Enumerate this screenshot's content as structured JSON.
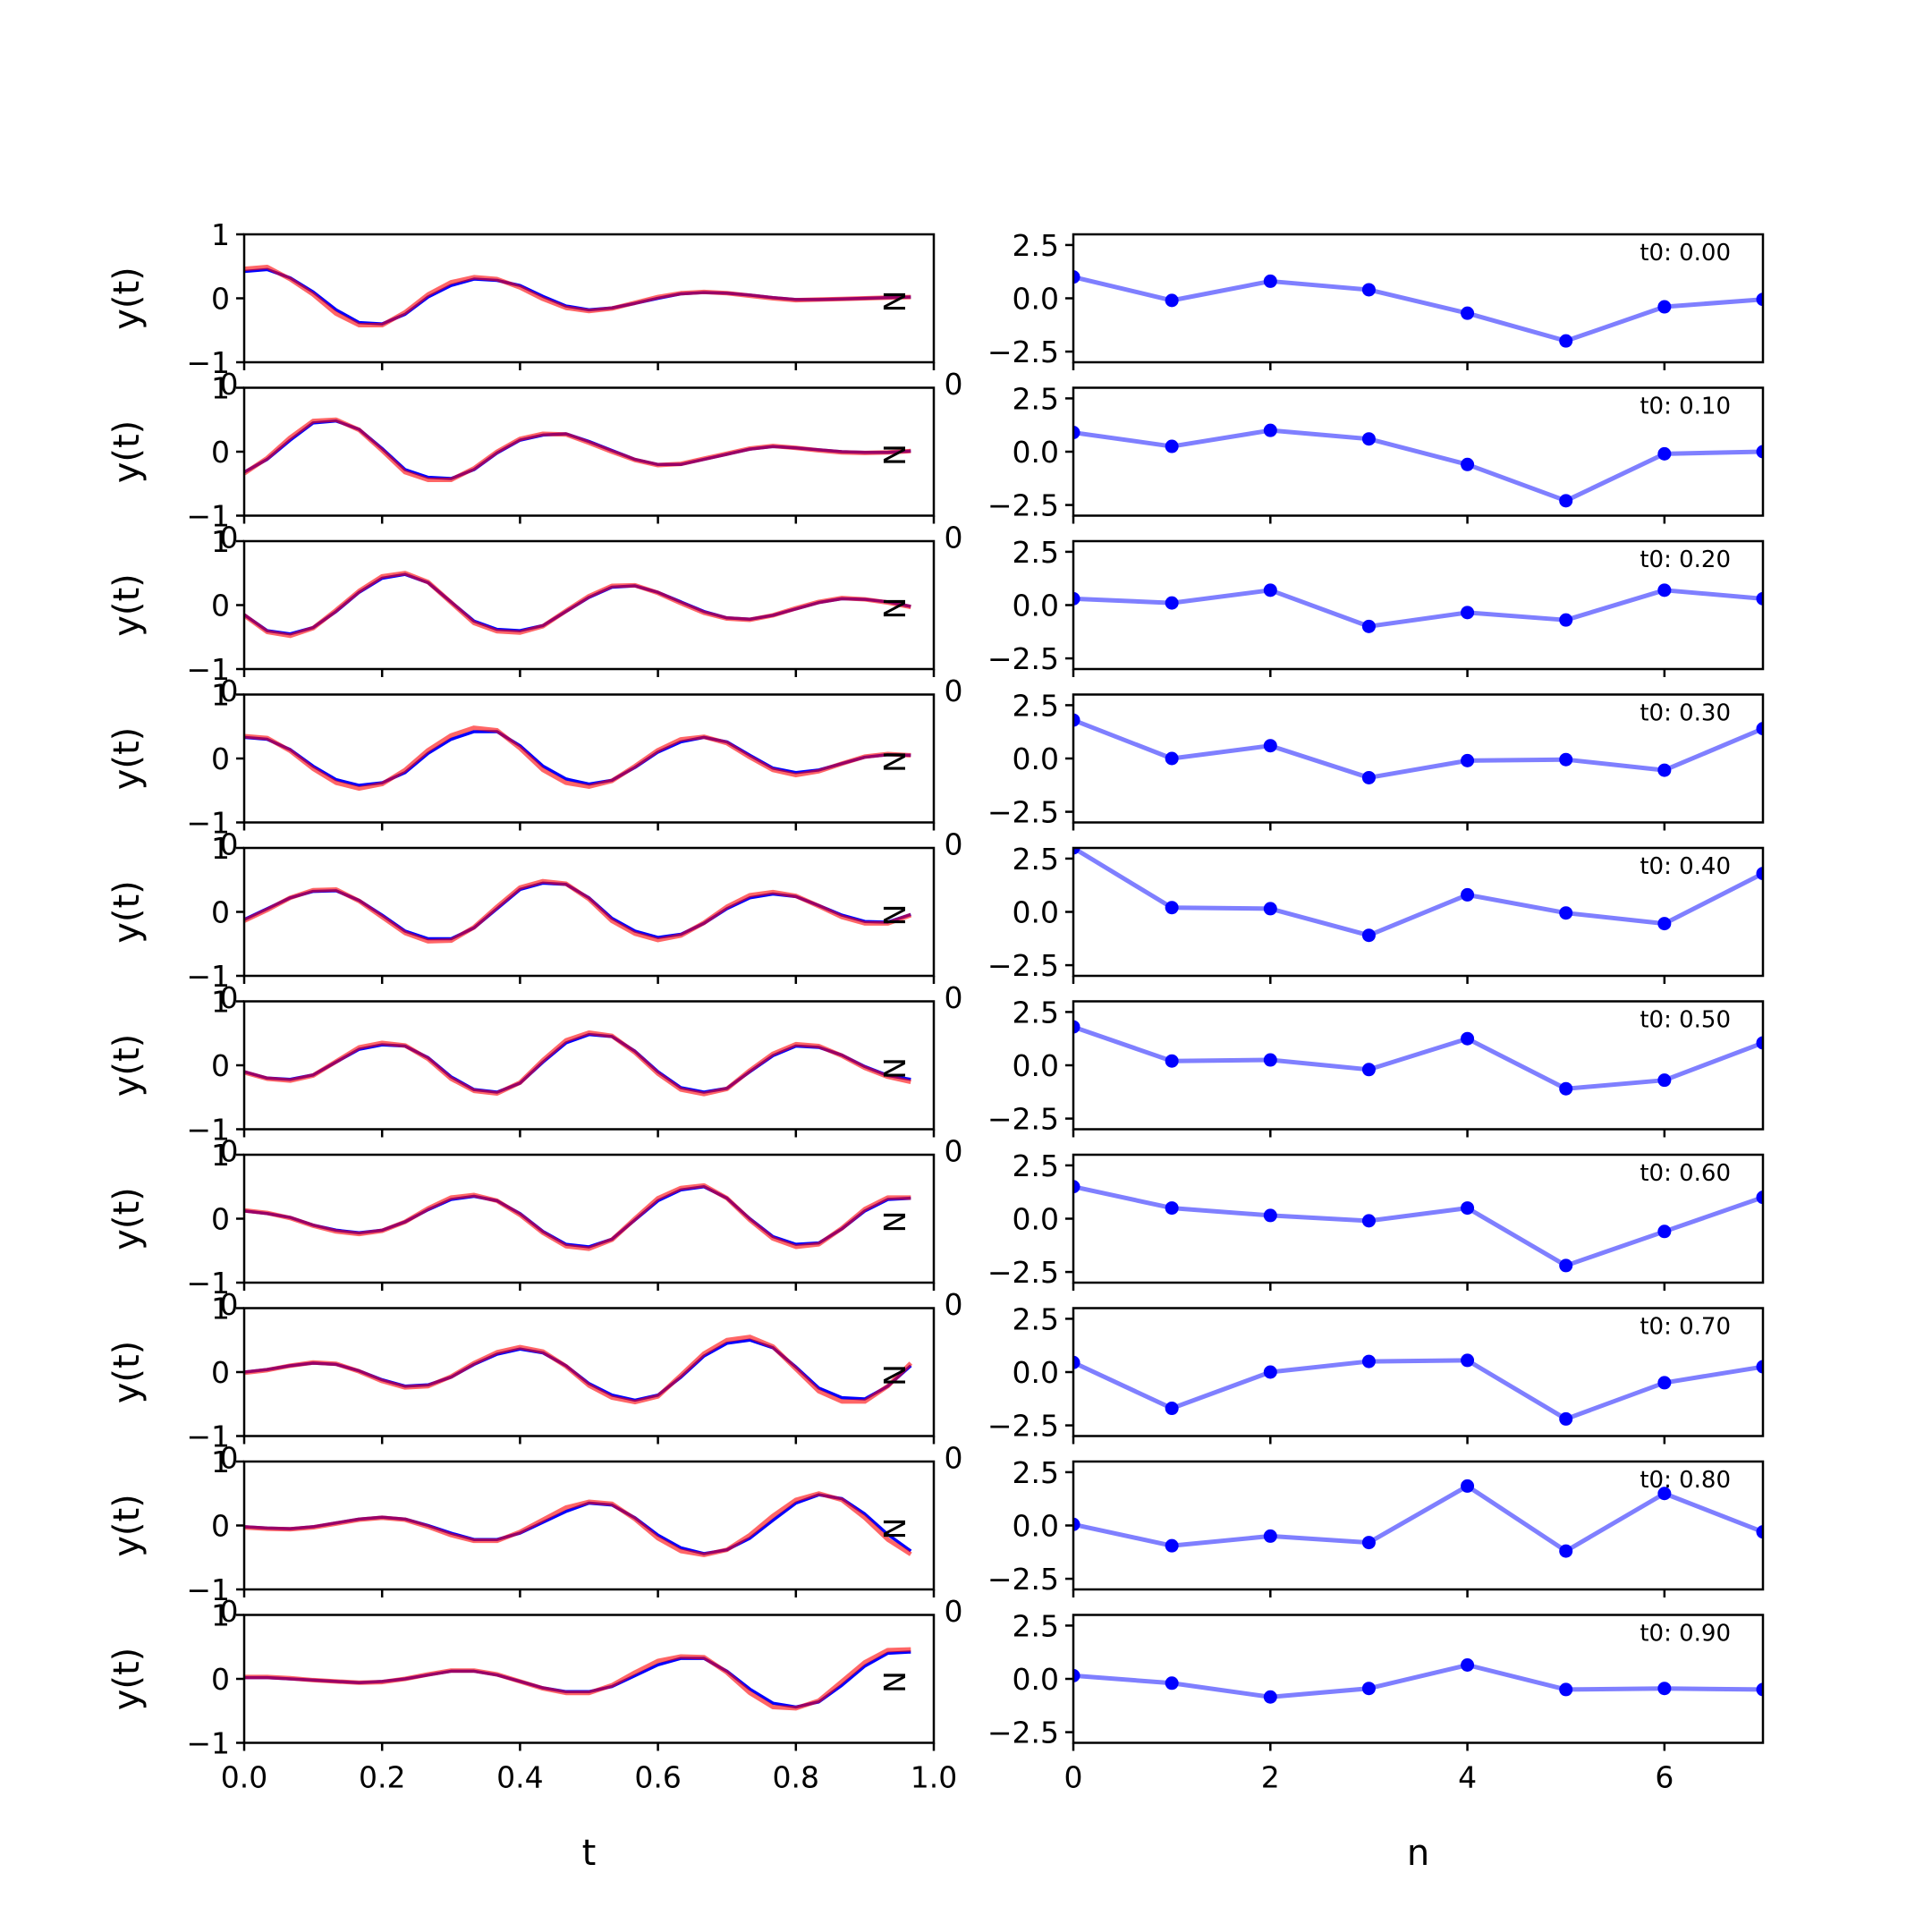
{
  "chart_data": {
    "type": "line",
    "colors": {
      "series_a": "#0000ff",
      "series_b": "#ff0000",
      "coeff": "#0000ff"
    },
    "left_column": {
      "xlabel": "t",
      "ylabel": "y(t)",
      "xlim": [
        0,
        1
      ],
      "ylim": [
        -1,
        1
      ],
      "yticks": [
        "−1",
        "0",
        "1"
      ],
      "xticks": [
        "0.0",
        "0.2",
        "0.4",
        "0.6",
        "0.8",
        "1.0"
      ],
      "corner_label": "0",
      "edge_label": "N"
    },
    "right_column": {
      "xlabel": "n",
      "xlim": [
        0,
        7
      ],
      "ylim": [
        -3,
        3
      ],
      "yticks": [
        "2.5",
        "0.0",
        "−2.5"
      ],
      "xticks": [
        "0",
        "2",
        "4",
        "6"
      ],
      "n": [
        0,
        1,
        2,
        3,
        4,
        5,
        6,
        7
      ]
    },
    "t": [
      0,
      0.0333,
      0.0667,
      0.1,
      0.1333,
      0.1667,
      0.2,
      0.2333,
      0.2667,
      0.3,
      0.3333,
      0.3667,
      0.4,
      0.4333,
      0.4667,
      0.5,
      0.5333,
      0.5667,
      0.6,
      0.6333,
      0.6667,
      0.7,
      0.7333,
      0.7667,
      0.8,
      0.8333,
      0.8667,
      0.9,
      0.9333,
      0.9667
    ],
    "panels": [
      {
        "annotation": "t0: 0.00",
        "series_a": [
          0.42,
          0.45,
          0.32,
          0.1,
          -0.18,
          -0.38,
          -0.4,
          -0.25,
          0.02,
          0.2,
          0.3,
          0.28,
          0.2,
          0.03,
          -0.12,
          -0.18,
          -0.15,
          -0.08,
          0.0,
          0.07,
          0.09,
          0.08,
          0.05,
          0.01,
          -0.02,
          -0.02,
          -0.01,
          0.0,
          0.01,
          0.02
        ],
        "series_b": [
          0.46,
          0.49,
          0.3,
          0.06,
          -0.24,
          -0.42,
          -0.42,
          -0.22,
          0.06,
          0.25,
          0.33,
          0.3,
          0.17,
          -0.01,
          -0.15,
          -0.2,
          -0.16,
          -0.07,
          0.02,
          0.08,
          0.1,
          0.08,
          0.04,
          0.0,
          -0.03,
          -0.02,
          -0.01,
          0.0,
          0.01,
          0.02
        ],
        "coeffs": [
          1.0,
          -0.1,
          0.8,
          0.4,
          -0.7,
          -2.0,
          -0.4,
          -0.05
        ]
      },
      {
        "annotation": "t0: 0.10",
        "series_a": [
          -0.32,
          -0.12,
          0.18,
          0.45,
          0.48,
          0.35,
          0.05,
          -0.28,
          -0.4,
          -0.42,
          -0.28,
          -0.02,
          0.18,
          0.26,
          0.28,
          0.16,
          0.02,
          -0.12,
          -0.2,
          -0.2,
          -0.12,
          -0.04,
          0.04,
          0.08,
          0.06,
          0.03,
          0.0,
          -0.01,
          -0.01,
          0.01
        ],
        "series_b": [
          -0.34,
          -0.1,
          0.22,
          0.48,
          0.5,
          0.34,
          0.02,
          -0.32,
          -0.44,
          -0.44,
          -0.26,
          0.0,
          0.2,
          0.28,
          0.27,
          0.14,
          0.0,
          -0.13,
          -0.21,
          -0.19,
          -0.11,
          -0.03,
          0.05,
          0.09,
          0.06,
          0.02,
          -0.01,
          -0.02,
          -0.01,
          0.01
        ],
        "coeffs": [
          0.9,
          0.25,
          1.0,
          0.6,
          -0.6,
          -2.3,
          -0.1,
          0.0
        ]
      },
      {
        "annotation": "t0: 0.20",
        "series_a": [
          -0.15,
          -0.4,
          -0.45,
          -0.35,
          -0.1,
          0.2,
          0.42,
          0.48,
          0.35,
          0.05,
          -0.25,
          -0.38,
          -0.4,
          -0.32,
          -0.1,
          0.12,
          0.28,
          0.3,
          0.2,
          0.05,
          -0.1,
          -0.2,
          -0.22,
          -0.16,
          -0.06,
          0.04,
          0.1,
          0.09,
          0.05,
          -0.02
        ],
        "series_b": [
          -0.16,
          -0.42,
          -0.48,
          -0.36,
          -0.08,
          0.22,
          0.45,
          0.5,
          0.36,
          0.04,
          -0.28,
          -0.41,
          -0.43,
          -0.33,
          -0.09,
          0.14,
          0.3,
          0.31,
          0.19,
          0.03,
          -0.12,
          -0.21,
          -0.23,
          -0.16,
          -0.05,
          0.05,
          0.11,
          0.09,
          0.04,
          -0.03
        ],
        "coeffs": [
          0.3,
          0.1,
          0.7,
          -1.0,
          -0.35,
          -0.7,
          0.7,
          0.3
        ]
      },
      {
        "annotation": "t0: 0.30",
        "series_a": [
          0.33,
          0.3,
          0.14,
          -0.12,
          -0.33,
          -0.42,
          -0.38,
          -0.22,
          0.08,
          0.3,
          0.42,
          0.42,
          0.2,
          -0.12,
          -0.32,
          -0.4,
          -0.34,
          -0.14,
          0.1,
          0.26,
          0.33,
          0.26,
          0.05,
          -0.15,
          -0.22,
          -0.18,
          -0.08,
          0.02,
          0.06,
          0.05
        ],
        "series_b": [
          0.35,
          0.32,
          0.12,
          -0.16,
          -0.38,
          -0.47,
          -0.4,
          -0.18,
          0.13,
          0.36,
          0.48,
          0.44,
          0.16,
          -0.18,
          -0.38,
          -0.44,
          -0.35,
          -0.12,
          0.13,
          0.3,
          0.34,
          0.24,
          0.02,
          -0.18,
          -0.26,
          -0.2,
          -0.08,
          0.03,
          0.07,
          0.05
        ],
        "coeffs": [
          1.8,
          0.0,
          0.6,
          -0.9,
          -0.1,
          -0.05,
          -0.55,
          1.4
        ]
      },
      {
        "annotation": "t0: 0.40",
        "series_a": [
          -0.12,
          0.05,
          0.22,
          0.32,
          0.33,
          0.18,
          -0.05,
          -0.3,
          -0.42,
          -0.42,
          -0.25,
          0.05,
          0.35,
          0.45,
          0.43,
          0.22,
          -0.1,
          -0.3,
          -0.4,
          -0.35,
          -0.18,
          0.05,
          0.22,
          0.28,
          0.24,
          0.1,
          -0.05,
          -0.15,
          -0.16,
          -0.04
        ],
        "series_b": [
          -0.14,
          0.03,
          0.22,
          0.34,
          0.35,
          0.17,
          -0.08,
          -0.33,
          -0.46,
          -0.45,
          -0.24,
          0.08,
          0.38,
          0.48,
          0.44,
          0.2,
          -0.14,
          -0.34,
          -0.44,
          -0.37,
          -0.17,
          0.08,
          0.26,
          0.31,
          0.25,
          0.09,
          -0.08,
          -0.18,
          -0.18,
          -0.05
        ],
        "coeffs": [
          3.0,
          0.2,
          0.15,
          -1.1,
          0.8,
          -0.05,
          -0.55,
          1.8
        ]
      },
      {
        "annotation": "t0: 0.50",
        "series_a": [
          -0.1,
          -0.2,
          -0.22,
          -0.15,
          0.05,
          0.25,
          0.32,
          0.3,
          0.12,
          -0.18,
          -0.38,
          -0.42,
          -0.28,
          0.05,
          0.35,
          0.48,
          0.45,
          0.22,
          -0.1,
          -0.35,
          -0.42,
          -0.36,
          -0.1,
          0.15,
          0.3,
          0.28,
          0.16,
          -0.02,
          -0.16,
          -0.22
        ],
        "series_b": [
          -0.11,
          -0.21,
          -0.24,
          -0.16,
          0.06,
          0.28,
          0.35,
          0.31,
          0.1,
          -0.21,
          -0.4,
          -0.44,
          -0.27,
          0.08,
          0.39,
          0.51,
          0.46,
          0.2,
          -0.13,
          -0.38,
          -0.45,
          -0.37,
          -0.08,
          0.18,
          0.33,
          0.3,
          0.15,
          -0.04,
          -0.18,
          -0.26
        ],
        "coeffs": [
          1.8,
          0.2,
          0.25,
          -0.2,
          1.25,
          -1.1,
          -0.7,
          1.05
        ]
      },
      {
        "annotation": "t0: 0.60",
        "series_a": [
          0.12,
          0.08,
          0.02,
          -0.1,
          -0.18,
          -0.22,
          -0.18,
          -0.05,
          0.14,
          0.3,
          0.35,
          0.28,
          0.08,
          -0.2,
          -0.4,
          -0.44,
          -0.32,
          -0.02,
          0.28,
          0.45,
          0.5,
          0.32,
          0.0,
          -0.28,
          -0.4,
          -0.38,
          -0.16,
          0.12,
          0.3,
          0.32
        ],
        "series_b": [
          0.13,
          0.09,
          0.01,
          -0.11,
          -0.2,
          -0.24,
          -0.19,
          -0.05,
          0.16,
          0.33,
          0.37,
          0.28,
          0.06,
          -0.22,
          -0.43,
          -0.47,
          -0.33,
          0.0,
          0.32,
          0.48,
          0.52,
          0.32,
          -0.02,
          -0.31,
          -0.44,
          -0.4,
          -0.15,
          0.15,
          0.33,
          0.33
        ],
        "coeffs": [
          1.5,
          0.5,
          0.15,
          -0.1,
          0.5,
          -2.2,
          -0.6,
          1.0
        ]
      },
      {
        "annotation": "t0: 0.70",
        "series_a": [
          0.0,
          0.04,
          0.1,
          0.14,
          0.12,
          0.02,
          -0.12,
          -0.22,
          -0.2,
          -0.08,
          0.12,
          0.28,
          0.36,
          0.3,
          0.1,
          -0.18,
          -0.36,
          -0.44,
          -0.36,
          -0.08,
          0.25,
          0.45,
          0.5,
          0.38,
          0.08,
          -0.25,
          -0.4,
          -0.42,
          -0.22,
          0.1
        ],
        "series_b": [
          -0.01,
          0.03,
          0.1,
          0.15,
          0.13,
          0.01,
          -0.14,
          -0.24,
          -0.22,
          -0.07,
          0.14,
          0.31,
          0.39,
          0.32,
          0.09,
          -0.21,
          -0.4,
          -0.47,
          -0.38,
          -0.05,
          0.29,
          0.5,
          0.55,
          0.4,
          0.05,
          -0.3,
          -0.46,
          -0.46,
          -0.22,
          0.14
        ],
        "coeffs": [
          0.45,
          -1.7,
          0.0,
          0.5,
          0.55,
          -2.2,
          -0.5,
          0.25
        ]
      },
      {
        "annotation": "t0: 0.80",
        "series_a": [
          -0.02,
          -0.04,
          -0.05,
          -0.02,
          0.04,
          0.1,
          0.13,
          0.1,
          0.0,
          -0.12,
          -0.22,
          -0.22,
          -0.12,
          0.05,
          0.22,
          0.35,
          0.32,
          0.12,
          -0.15,
          -0.35,
          -0.44,
          -0.38,
          -0.2,
          0.08,
          0.35,
          0.48,
          0.42,
          0.18,
          -0.14,
          -0.4
        ],
        "series_b": [
          -0.03,
          -0.05,
          -0.06,
          -0.03,
          0.03,
          0.09,
          0.12,
          0.09,
          -0.02,
          -0.15,
          -0.24,
          -0.24,
          -0.1,
          0.09,
          0.28,
          0.37,
          0.34,
          0.1,
          -0.2,
          -0.4,
          -0.46,
          -0.38,
          -0.15,
          0.15,
          0.4,
          0.5,
          0.4,
          0.12,
          -0.22,
          -0.45
        ],
        "coeffs": [
          0.05,
          -0.95,
          -0.5,
          -0.8,
          1.85,
          -1.2,
          1.5,
          -0.3
        ]
      },
      {
        "annotation": "t0: 0.90",
        "series_a": [
          0.02,
          0.02,
          0.0,
          -0.02,
          -0.04,
          -0.06,
          -0.04,
          0.0,
          0.06,
          0.12,
          0.12,
          0.06,
          -0.04,
          -0.14,
          -0.2,
          -0.2,
          -0.12,
          0.05,
          0.22,
          0.32,
          0.32,
          0.12,
          -0.16,
          -0.38,
          -0.44,
          -0.36,
          -0.1,
          0.2,
          0.4,
          0.42
        ],
        "series_b": [
          0.03,
          0.03,
          0.01,
          -0.02,
          -0.04,
          -0.06,
          -0.05,
          0.0,
          0.07,
          0.13,
          0.13,
          0.07,
          -0.04,
          -0.15,
          -0.22,
          -0.22,
          -0.1,
          0.1,
          0.28,
          0.35,
          0.34,
          0.1,
          -0.22,
          -0.44,
          -0.46,
          -0.34,
          -0.04,
          0.26,
          0.45,
          0.46
        ],
        "coeffs": [
          0.15,
          -0.2,
          -0.85,
          -0.45,
          0.65,
          -0.5,
          -0.45,
          -0.5
        ]
      }
    ]
  }
}
